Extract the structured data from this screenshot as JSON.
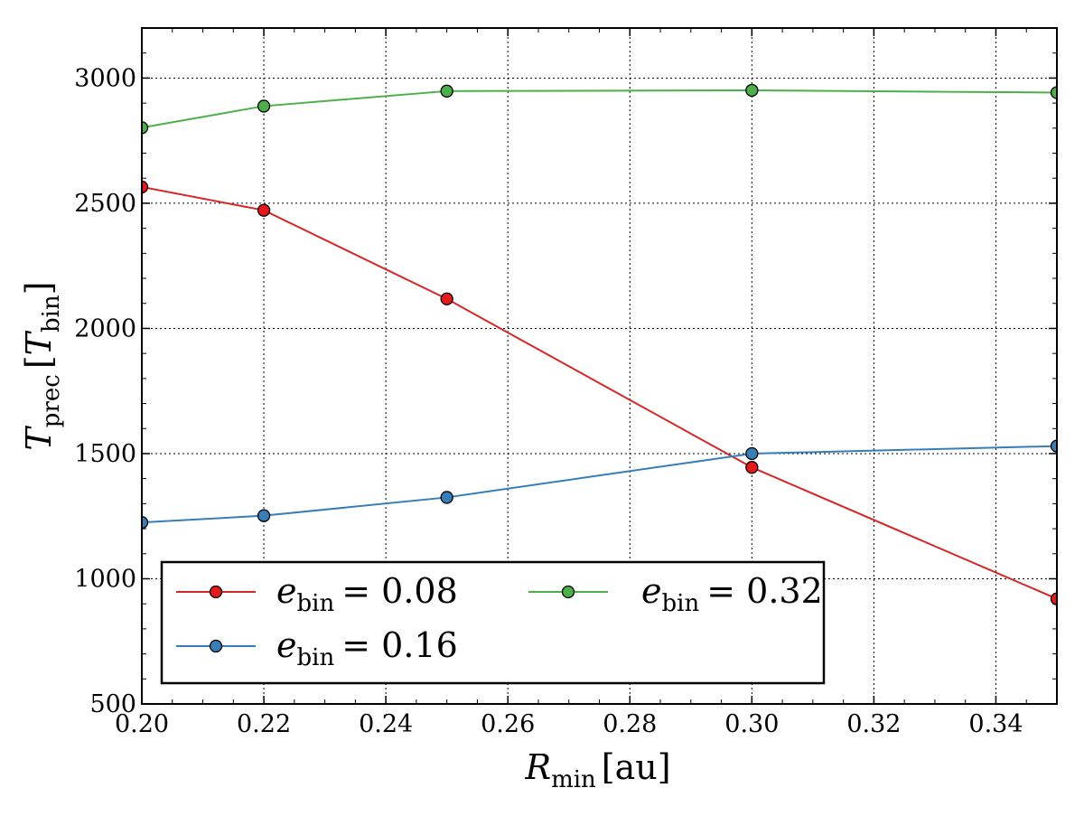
{
  "chart_data": {
    "type": "line",
    "title": "",
    "xlabel": {
      "main": "R",
      "sub": "min",
      "unit": "[au]"
    },
    "ylabel": {
      "main": "T",
      "sub": "prec",
      "unit_main": "T",
      "unit_sub": "bin"
    },
    "xlim": [
      0.2,
      0.35
    ],
    "ylim": [
      500,
      3200
    ],
    "xticks": [
      0.2,
      0.22,
      0.24,
      0.26,
      0.28,
      0.3,
      0.32,
      0.34
    ],
    "xtick_labels": [
      "0.20",
      "0.22",
      "0.24",
      "0.26",
      "0.28",
      "0.30",
      "0.32",
      "0.34"
    ],
    "yticks": [
      500,
      1000,
      1500,
      2000,
      2500,
      3000
    ],
    "ytick_labels": [
      "500",
      "1000",
      "1500",
      "2000",
      "2500",
      "3000"
    ],
    "grid": true,
    "legend_position": "lower-left",
    "series": [
      {
        "name": "e_bin = 0.08",
        "label_main": "e",
        "label_sub": "bin",
        "label_value": "= 0.08",
        "color": "#d62728",
        "marker_color": "#e41a1c",
        "x": [
          0.2,
          0.22,
          0.25,
          0.3,
          0.35
        ],
        "values": [
          2565,
          2472,
          2118,
          1445,
          920
        ]
      },
      {
        "name": "e_bin = 0.16",
        "label_main": "e",
        "label_sub": "bin",
        "label_value": "= 0.16",
        "color": "#377eb8",
        "marker_color": "#377eb8",
        "x": [
          0.2,
          0.22,
          0.25,
          0.3,
          0.35
        ],
        "values": [
          1225,
          1252,
          1325,
          1500,
          1530
        ]
      },
      {
        "name": "e_bin = 0.32",
        "label_main": "e",
        "label_sub": "bin",
        "label_value": "= 0.32",
        "color": "#4daf4a",
        "marker_color": "#4daf4a",
        "x": [
          0.2,
          0.22,
          0.25,
          0.3,
          0.35
        ],
        "values": [
          2802,
          2888,
          2948,
          2951,
          2942
        ]
      }
    ]
  }
}
